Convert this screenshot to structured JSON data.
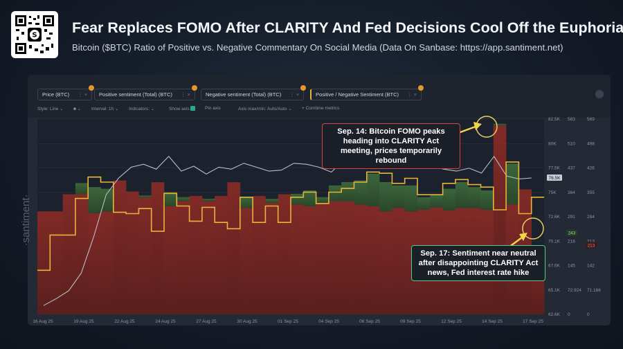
{
  "header": {
    "title": "Fear Replaces FOMO After CLARITY And Fed Decisions Cool Off the Euphoria!",
    "subtitle": "Bitcoin ($BTC) Ratio of Positive vs. Negative Commentary On Social Media (Data On Sanbase: https://app.santiment.net)"
  },
  "toolbar": {
    "metrics": [
      {
        "label": "Price (BTC)"
      },
      {
        "label": "Positive sentiment (Total) (BTC)"
      },
      {
        "label": "Negative sentiment (Total) (BTC)"
      },
      {
        "label": "Positive / Negative Sentiment (BTC)"
      }
    ],
    "style_label": "Style: Line",
    "interval_label": "Interval: 1h",
    "indicators_label": "Indicators:",
    "show_axis_label": "Show axis",
    "pin_axis_label": "Pin axis",
    "axis_label": "Axis max/min: Auto/Auto",
    "combine_label": "+ Combine metrics"
  },
  "watermark": "·santiment·",
  "annotations": {
    "peak": "Sep. 14: Bitcoin FOMO peaks heading into CLARITY Act meeting, prices temporarily rebound",
    "neutral": "Sep. 17: Sentiment near neutral after disappointing CLARITY Act news, Fed interest rate hike"
  },
  "colors": {
    "price": "#b9bfc8",
    "ratio": "#e8b43a",
    "positive": "#3f6b3c",
    "negative": "#7d2a26",
    "accent": "#e8962c"
  },
  "chart_data": {
    "type": "bar",
    "title": "",
    "x_ticks": [
      "16 Aug 25",
      "19 Aug 25",
      "22 Aug 25",
      "24 Aug 25",
      "27 Aug 25",
      "30 Aug 25",
      "01 Sep 25",
      "04 Sep 25",
      "06 Sep 25",
      "09 Sep 25",
      "12 Sep 25",
      "14 Sep 25",
      "17 Sep 25"
    ],
    "price_axis": {
      "ticks": [
        "82.5K",
        "80K",
        "77.5K",
        "75K",
        "72.6K",
        "70.1K",
        "67.6K",
        "65.1K",
        "62.6K"
      ],
      "range": [
        62600,
        82500
      ],
      "current": "76.5K"
    },
    "positive_axis": {
      "ticks": [
        "583",
        "510",
        "437",
        "364",
        "291",
        "218",
        "145",
        "72.924",
        "0"
      ],
      "current": "243"
    },
    "negative_axis": {
      "ticks": [
        "569",
        "498",
        "426",
        "355",
        "284",
        "213",
        "142",
        "71.166",
        "0"
      ],
      "current": "213"
    },
    "series": [
      {
        "name": "Price (BTC)",
        "type": "line",
        "values": [
          63500,
          64200,
          65000,
          66800,
          70500,
          74800,
          76500,
          77600,
          77900,
          77400,
          78700,
          77200,
          77700,
          76900,
          77600,
          77400,
          78000,
          77600,
          77200,
          77300,
          78000,
          77900,
          77600,
          77100,
          78300,
          80500,
          79900,
          79300,
          78400,
          78000,
          77600,
          77700,
          77400,
          77200,
          77500,
          77000,
          78700,
          76700,
          76400,
          76500
        ]
      },
      {
        "name": "Positive sentiment (Total) (BTC)",
        "type": "bar",
        "values": [
          165,
          250,
          290,
          392,
          380,
          375,
          395,
          358,
          355,
          330,
          365,
          350,
          325,
          345,
          320,
          340,
          350,
          320,
          345,
          325,
          360,
          370,
          350,
          385,
          395,
          400,
          420,
          395,
          385,
          385,
          350,
          358,
          375,
          395,
          380,
          370,
          569,
          450,
          364,
          0
        ]
      },
      {
        "name": "Negative sentiment (Total) (BTC)",
        "type": "bar",
        "values": [
          300,
          300,
          350,
          350,
          295,
          300,
          390,
          358,
          340,
          385,
          315,
          330,
          345,
          330,
          345,
          385,
          310,
          345,
          325,
          350,
          320,
          315,
          325,
          330,
          330,
          320,
          315,
          300,
          310,
          300,
          305,
          312,
          303,
          310,
          310,
          305,
          550,
          320,
          364,
          200
        ]
      },
      {
        "name": "Positive / Negative Sentiment (BTC)",
        "type": "line",
        "values": [
          0.55,
          0.83,
          0.83,
          1.12,
          1.29,
          1.25,
          1.01,
          1.0,
          1.04,
          0.86,
          1.16,
          1.06,
          0.94,
          1.05,
          0.93,
          0.88,
          1.13,
          0.93,
          1.06,
          0.93,
          1.13,
          1.17,
          1.08,
          1.17,
          1.2,
          1.25,
          1.33,
          1.32,
          1.24,
          1.28,
          1.15,
          1.15,
          1.24,
          1.27,
          1.23,
          1.21,
          1.03,
          1.41,
          1.0,
          1.13
        ]
      }
    ]
  }
}
